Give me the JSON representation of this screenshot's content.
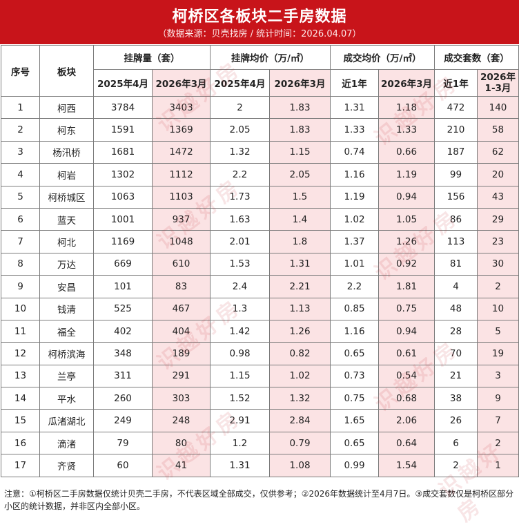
{
  "title": "柯桥区各板块二手房数据",
  "subtitle": "（数据来源：贝壳找房 / 统计时间：2026.04.07）",
  "headers": {
    "index": "序号",
    "block": "板块",
    "listing_count": "挂牌量（套）",
    "listing_price": "挂牌均价（万/㎡）",
    "deal_price": "成交均价（万/㎡）",
    "deal_count": "成交套数（套）",
    "sub": [
      "2025年4月",
      "2026年3月",
      "2025年4月",
      "2026年3月",
      "近1年",
      "2026年3月",
      "近1年",
      "2026年\n1-3月"
    ]
  },
  "rows": [
    [
      "1",
      "柯西",
      "3784",
      "3403",
      "2",
      "1.83",
      "1.31",
      "1.18",
      "472",
      "140"
    ],
    [
      "2",
      "柯东",
      "1591",
      "1369",
      "2.05",
      "1.83",
      "1.33",
      "1.33",
      "210",
      "58"
    ],
    [
      "3",
      "杨汛桥",
      "1681",
      "1472",
      "1.32",
      "1.15",
      "0.74",
      "0.66",
      "187",
      "62"
    ],
    [
      "4",
      "柯岩",
      "1302",
      "1112",
      "2.2",
      "2.05",
      "1.16",
      "1.19",
      "99",
      "20"
    ],
    [
      "5",
      "柯桥城区",
      "1063",
      "1103",
      "1.73",
      "1.5",
      "1.19",
      "0.94",
      "156",
      "43"
    ],
    [
      "6",
      "蓝天",
      "1001",
      "937",
      "1.63",
      "1.4",
      "1.02",
      "1.05",
      "86",
      "29"
    ],
    [
      "7",
      "柯北",
      "1169",
      "1048",
      "2.01",
      "1.8",
      "1.37",
      "1.26",
      "113",
      "23"
    ],
    [
      "8",
      "万达",
      "669",
      "610",
      "1.53",
      "1.31",
      "1.01",
      "0.92",
      "81",
      "30"
    ],
    [
      "9",
      "安昌",
      "101",
      "83",
      "2.4",
      "2.21",
      "2.2",
      "1.81",
      "4",
      "2"
    ],
    [
      "10",
      "钱清",
      "525",
      "467",
      "1.3",
      "1.13",
      "0.85",
      "0.75",
      "48",
      "10"
    ],
    [
      "11",
      "福全",
      "402",
      "404",
      "1.42",
      "1.26",
      "1.16",
      "0.94",
      "28",
      "5"
    ],
    [
      "12",
      "柯桥滨海",
      "348",
      "189",
      "0.98",
      "0.82",
      "0.65",
      "0.61",
      "70",
      "19"
    ],
    [
      "13",
      "兰亭",
      "311",
      "291",
      "1.15",
      "1.02",
      "0.73",
      "0.54",
      "21",
      "3"
    ],
    [
      "14",
      "平水",
      "260",
      "303",
      "1.52",
      "1.32",
      "0.75",
      "0.68",
      "38",
      "9"
    ],
    [
      "15",
      "瓜渚湖北",
      "249",
      "248",
      "2.91",
      "2.84",
      "1.65",
      "2.06",
      "26",
      "7"
    ],
    [
      "16",
      "滴渚",
      "79",
      "80",
      "1.2",
      "0.79",
      "0.65",
      "0.64",
      "6",
      "2"
    ],
    [
      "17",
      "齐贤",
      "60",
      "41",
      "1.31",
      "1.08",
      "0.99",
      "1.54",
      "2",
      "1"
    ]
  ],
  "note": "注意：①柯桥区二手房数据仅统计贝壳二手房，不代表区域全部成交，仅供参考；②2026年数据统计至4月7日。③成交套数仅是柯桥区部分小区的统计数据，并非区内全部小区。",
  "watermark": "识越好房",
  "colors": {
    "banner": "#c8141a",
    "pink": "#fbe3e4",
    "border": "#7a7a7a"
  }
}
